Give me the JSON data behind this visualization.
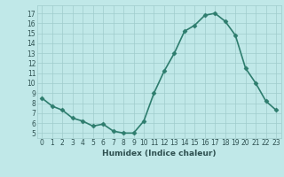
{
  "x": [
    0,
    1,
    2,
    3,
    4,
    5,
    6,
    7,
    8,
    9,
    10,
    11,
    12,
    13,
    14,
    15,
    16,
    17,
    18,
    19,
    20,
    21,
    22,
    23
  ],
  "y": [
    8.5,
    7.7,
    7.3,
    6.5,
    6.2,
    5.7,
    5.9,
    5.2,
    5.0,
    5.0,
    6.2,
    9.0,
    11.2,
    13.0,
    15.2,
    15.8,
    16.8,
    17.0,
    16.2,
    14.8,
    11.5,
    10.0,
    8.2,
    7.3
  ],
  "line_color": "#2e7d6e",
  "marker": "D",
  "marker_size": 2.5,
  "bg_color": "#c0e8e8",
  "grid_color": "#a0cccc",
  "xlabel": "Humidex (Indice chaleur)",
  "ylim": [
    4.5,
    17.8
  ],
  "xlim": [
    -0.5,
    23.5
  ],
  "yticks": [
    5,
    6,
    7,
    8,
    9,
    10,
    11,
    12,
    13,
    14,
    15,
    16,
    17
  ],
  "xticks": [
    0,
    1,
    2,
    3,
    4,
    5,
    6,
    7,
    8,
    9,
    10,
    11,
    12,
    13,
    14,
    15,
    16,
    17,
    18,
    19,
    20,
    21,
    22,
    23
  ],
  "font_color": "#2e5050",
  "linewidth": 1.2,
  "tick_fontsize": 5.5,
  "xlabel_fontsize": 6.5
}
